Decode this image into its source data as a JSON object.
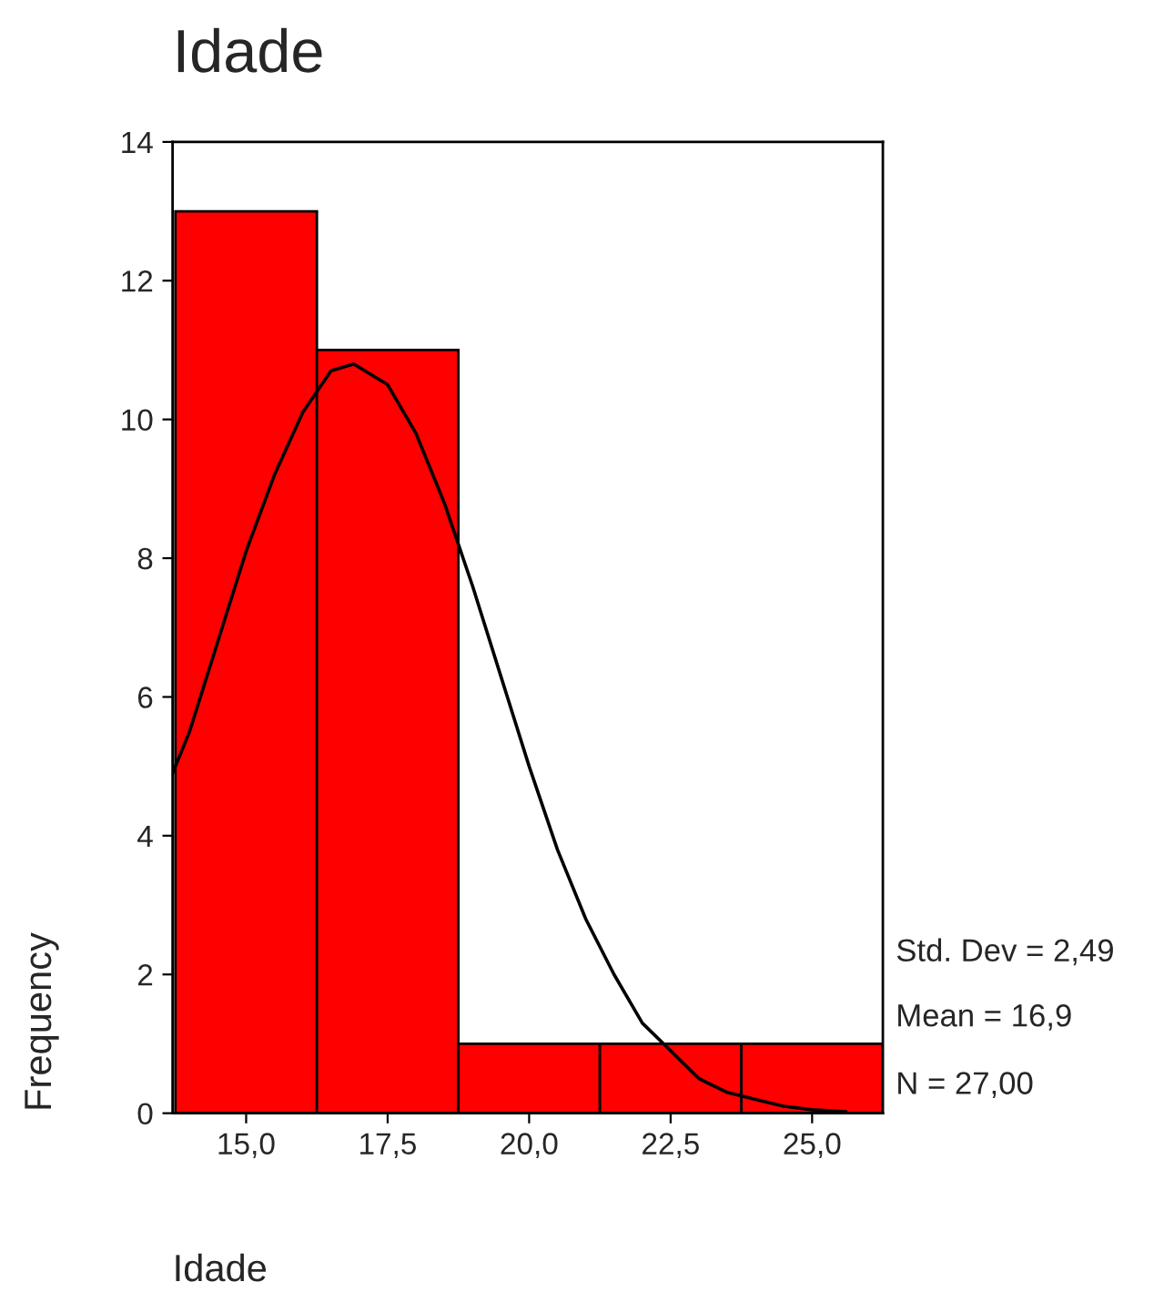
{
  "chart_data": {
    "type": "histogram",
    "title": "Idade",
    "xlabel": "Idade",
    "ylabel": "Frequency",
    "bins": [
      13.75,
      16.25,
      18.75,
      21.25,
      23.75,
      26.25
    ],
    "values": [
      13,
      11,
      1,
      1,
      1
    ],
    "color": "#ff0000",
    "series": [
      {
        "type": "line",
        "color": "#000000",
        "x": [
          13.7,
          14.0,
          14.5,
          15.0,
          15.5,
          16.0,
          16.5,
          16.9,
          17.5,
          18.0,
          18.5,
          19.0,
          19.5,
          20.0,
          20.5,
          21.0,
          21.5,
          22.0,
          22.5,
          23.0,
          23.5,
          24.0,
          24.5,
          25.0,
          25.6
        ],
        "values": [
          4.9,
          5.5,
          6.8,
          8.1,
          9.2,
          10.1,
          10.7,
          10.8,
          10.5,
          9.8,
          8.8,
          7.6,
          6.3,
          5.0,
          3.8,
          2.8,
          2.0,
          1.3,
          0.9,
          0.5,
          0.3,
          0.2,
          0.1,
          0.05,
          0.02
        ]
      }
    ],
    "xlim": [
      13.7,
      26.25
    ],
    "xticks": [
      {
        "value": 15,
        "label": "15,0"
      },
      {
        "value": 17.5,
        "label": "17,5"
      },
      {
        "value": 20,
        "label": "20,0"
      },
      {
        "value": 22.5,
        "label": "22,5"
      },
      {
        "value": 25,
        "label": "25,0"
      }
    ],
    "ylim": [
      0,
      14
    ],
    "yticks": [
      0,
      2,
      4,
      6,
      8,
      10,
      12,
      14
    ],
    "annotations": [
      "Std. Dev = 2,49",
      "Mean = 16,9",
      "N = 27,00"
    ]
  }
}
